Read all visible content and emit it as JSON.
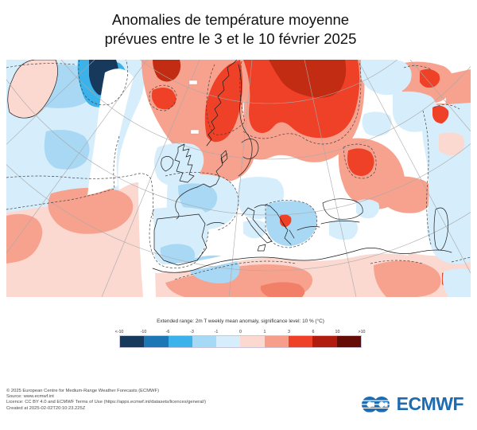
{
  "title": {
    "line1": "Anomalies de température moyenne",
    "line2": "prévues entre le 3 et le 10 février 2025"
  },
  "map": {
    "description": "2m temperature weekly mean anomaly map, Europe / North Atlantic"
  },
  "legend": {
    "label": "Extended range: 2m T weekly mean anomaly, significance level: 10 % (°C)",
    "ticks": [
      "<-10",
      "-10",
      "-6",
      "-3",
      "-1",
      "0",
      "1",
      "3",
      "6",
      "10",
      ">10"
    ],
    "colors": [
      "#16395c",
      "#1d77b4",
      "#3cb2ea",
      "#a6d9f6",
      "#d6edfb",
      "#fbd9d0",
      "#f79e8a",
      "#ee4128",
      "#b01c0d",
      "#650c06"
    ]
  },
  "footer": {
    "line1": "© 2025 European Centre for Medium-Range Weather Forecasts (ECMWF)",
    "line2": "Source: www.ecmwf.int",
    "line3": "Licence: CC BY 4.0 and ECMWF Terms of Use (https://apps.ecmwf.int/datasets/licences/general/)",
    "line4": "Created at 2025-02-02T20:10:23.225Z"
  },
  "logo": {
    "text": "ECMWF"
  },
  "colors": {
    "logo": "#1e6bb0",
    "navy": "#16395c",
    "blue2": "#1d77b4",
    "blue3": "#3cb2ea",
    "blue4": "#a9d8f4",
    "blue5": "#d6edfb",
    "pink1": "#fbd9d0",
    "pink2": "#f7a28e",
    "pink3": "#f28068",
    "red1": "#ee4128",
    "red_deep": "#c12c12"
  }
}
